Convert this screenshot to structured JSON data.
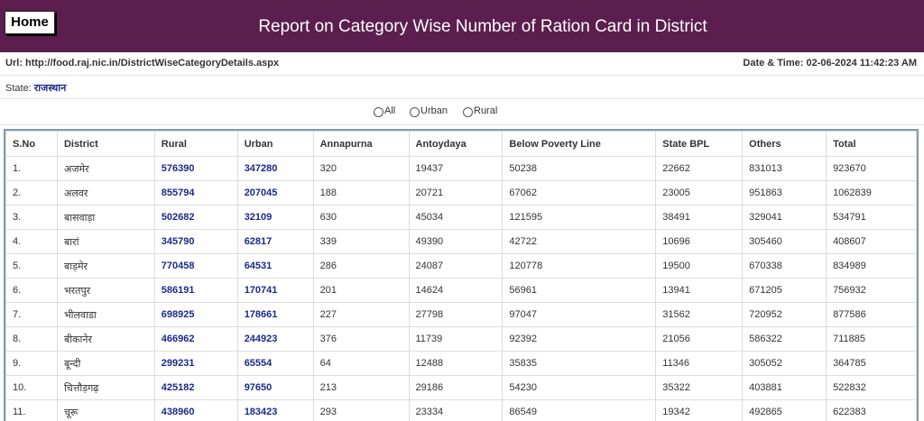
{
  "header": {
    "home_label": "Home",
    "title": "Report on Category Wise Number of Ration Card in District"
  },
  "info": {
    "url": "Url: http://food.raj.nic.in/DistrictWiseCategoryDetails.aspx",
    "datetime": "Date & Time: 02-06-2024 11:42:23 AM"
  },
  "state": {
    "label": "State:",
    "value": "राजस्थान"
  },
  "filters": {
    "options": [
      "All",
      "Urban",
      "Rural"
    ]
  },
  "table": {
    "headers": [
      "S.No",
      "District",
      "Rural",
      "Urban",
      "Annapurna",
      "Antoydaya",
      "Below Poverty Line",
      "State BPL",
      "Others",
      "Total"
    ],
    "rows": [
      [
        "1.",
        "अजमेर",
        "576390",
        "347280",
        "320",
        "19437",
        "50238",
        "22662",
        "831013",
        "923670"
      ],
      [
        "2.",
        "अलवर",
        "855794",
        "207045",
        "188",
        "20721",
        "67062",
        "23005",
        "951863",
        "1062839"
      ],
      [
        "3.",
        "बासवाड़ा",
        "502682",
        "32109",
        "630",
        "45034",
        "121595",
        "38491",
        "329041",
        "534791"
      ],
      [
        "4.",
        "बारां",
        "345790",
        "62817",
        "339",
        "49390",
        "42722",
        "10696",
        "305460",
        "408607"
      ],
      [
        "5.",
        "बाड़मेर",
        "770458",
        "64531",
        "286",
        "24087",
        "120778",
        "19500",
        "670338",
        "834989"
      ],
      [
        "6.",
        "भरतपुर",
        "586191",
        "170741",
        "201",
        "14624",
        "56961",
        "13941",
        "671205",
        "756932"
      ],
      [
        "7.",
        "भीलवाडा",
        "698925",
        "178661",
        "227",
        "27798",
        "97047",
        "31562",
        "720952",
        "877586"
      ],
      [
        "8.",
        "बीकानेर",
        "466962",
        "244923",
        "376",
        "11739",
        "92392",
        "21056",
        "586322",
        "711885"
      ],
      [
        "9.",
        "बून्दी",
        "299231",
        "65554",
        "64",
        "12488",
        "35835",
        "11346",
        "305052",
        "364785"
      ],
      [
        "10.",
        "चित्तौड़गढ़",
        "425182",
        "97650",
        "213",
        "29186",
        "54230",
        "35322",
        "403881",
        "522832"
      ],
      [
        "11.",
        "चूरू",
        "438960",
        "183423",
        "293",
        "23334",
        "86549",
        "19342",
        "492865",
        "622383"
      ]
    ]
  }
}
